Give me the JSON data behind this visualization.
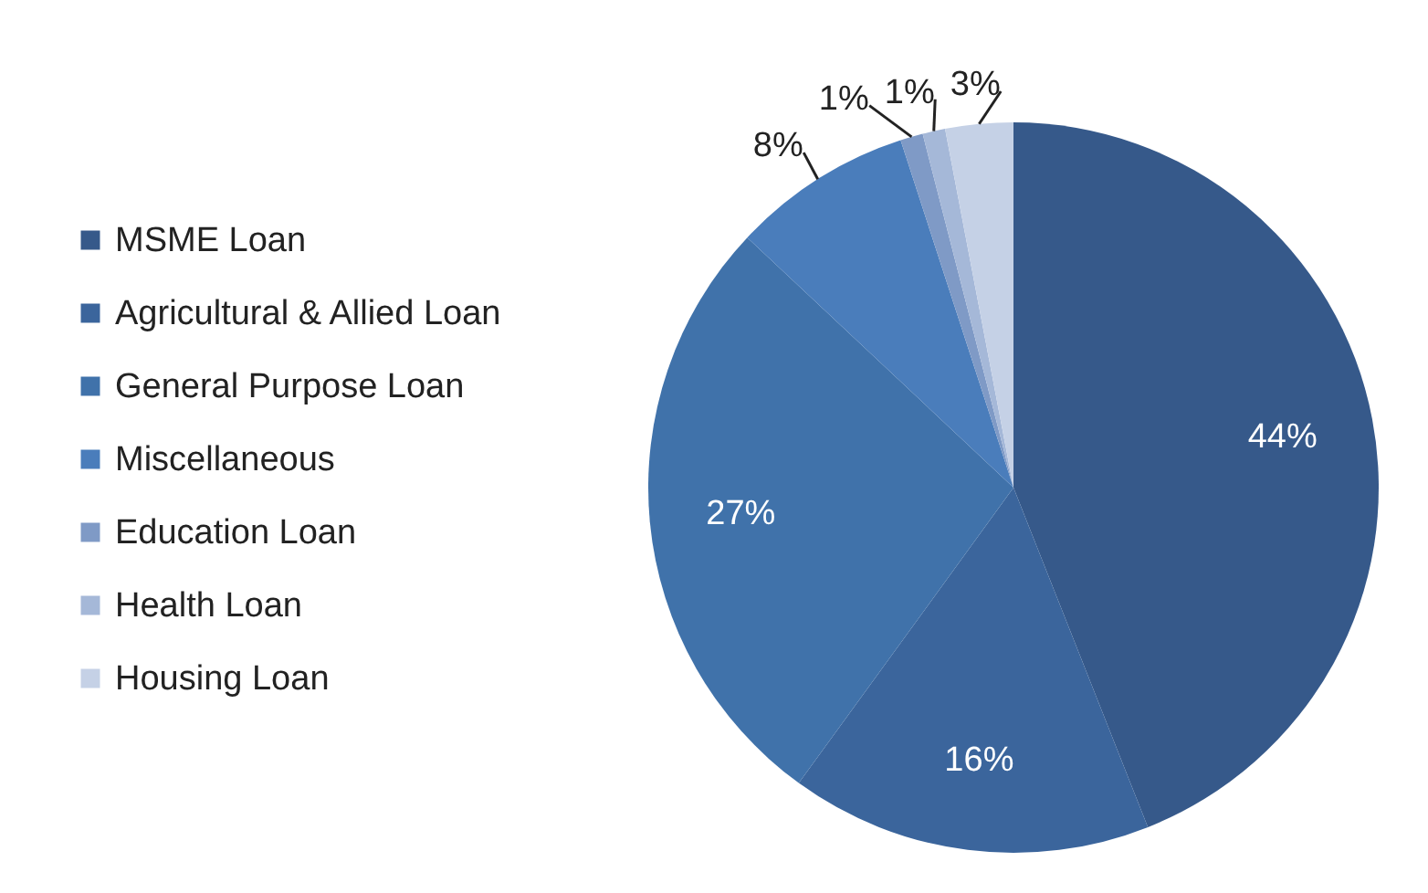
{
  "chart_data": {
    "type": "pie",
    "categories": [
      "MSME Loan",
      "Agricultural & Allied Loan",
      "General Purpose Loan",
      "Miscellaneous",
      "Education Loan",
      "Health Loan",
      "Housing Loan"
    ],
    "values": [
      44,
      16,
      27,
      8,
      1,
      1,
      3
    ],
    "value_labels": [
      "44%",
      "16%",
      "27%",
      "8%",
      "1%",
      "1%",
      "3%"
    ],
    "colors": [
      "#36598a",
      "#3b659c",
      "#4072aa",
      "#4a7dbb",
      "#7f9ac6",
      "#a5b8d8",
      "#c5d1e6"
    ],
    "legend": "left"
  }
}
